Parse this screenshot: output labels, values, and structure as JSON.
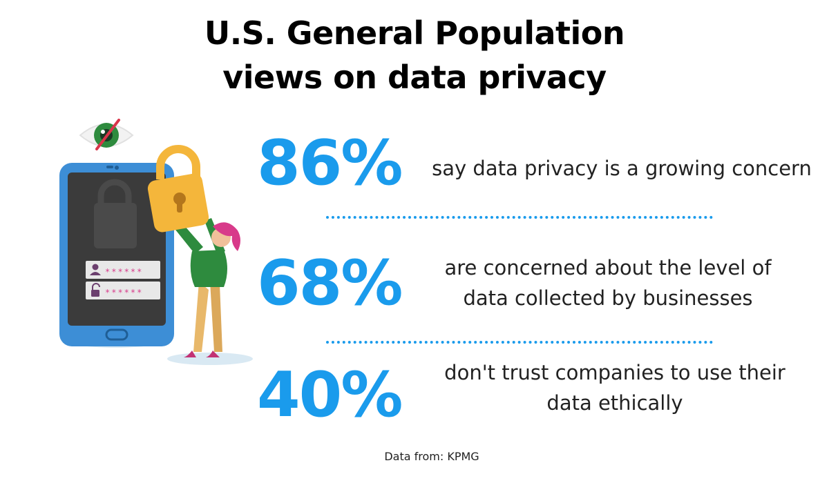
{
  "title": {
    "line1": "U.S. General Population",
    "line2": "views on data privacy"
  },
  "stats": [
    {
      "percent": "86%",
      "lines": [
        "say data privacy is a growing concern"
      ]
    },
    {
      "percent": "68%",
      "lines": [
        "are concerned about the level of",
        "data collected by businesses"
      ]
    },
    {
      "percent": "40%",
      "lines": [
        "don't trust companies to use their",
        "data ethically"
      ]
    }
  ],
  "source": "Data from: KPMG",
  "illustration": {
    "icons": [
      "eye-crossed-icon",
      "smartphone-icon",
      "padlock-icon",
      "user-icon",
      "unlock-icon",
      "person-holding-lock"
    ],
    "password_mask": "******"
  },
  "colors": {
    "accent": "#1a9bec",
    "phone_frame": "#3d8ed6",
    "lock": "#f4b63b",
    "shirt": "#2e8b3e",
    "hair": "#d83a8a"
  }
}
